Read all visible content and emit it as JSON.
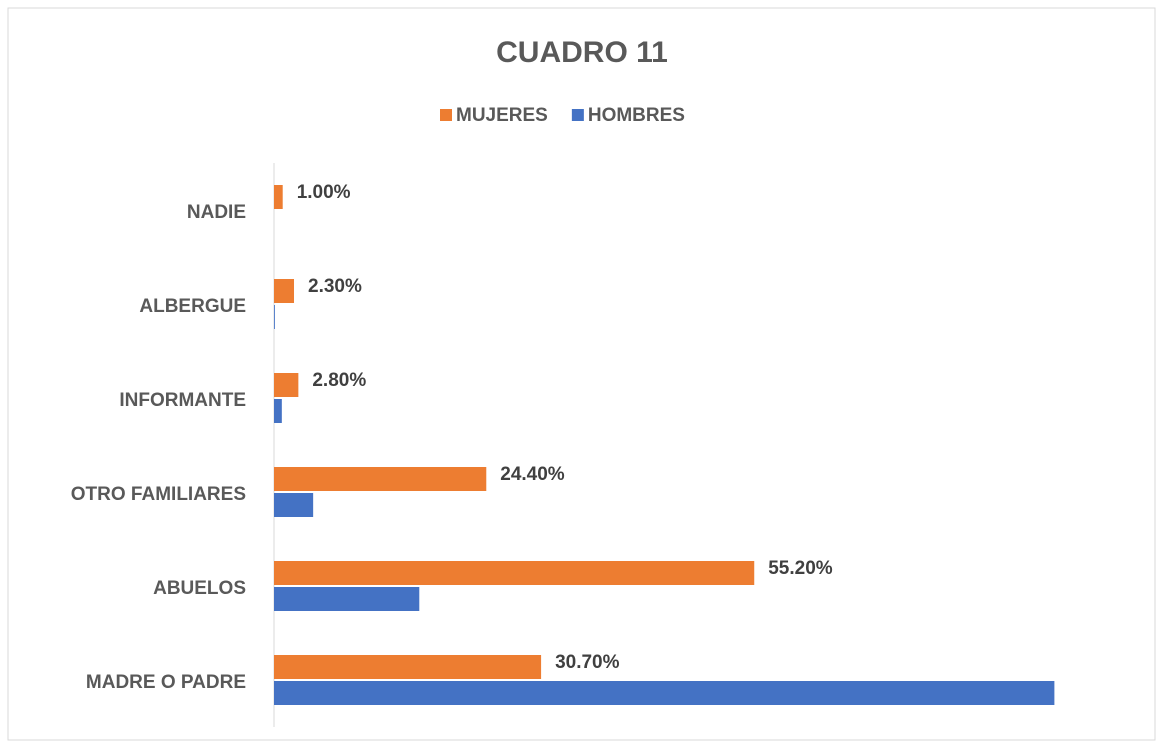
{
  "chart_data": {
    "type": "barh",
    "title": "CUADRO 11",
    "categories": [
      "NADIE",
      "ALBERGUE",
      "INFORMANTE",
      "OTRO FAMILIARES",
      "ABUELOS",
      "MADRE O PADRE"
    ],
    "series": [
      {
        "name": "MUJERES",
        "color": "#ed7d31",
        "values": [
          1.0,
          2.3,
          2.8,
          24.4,
          55.2,
          30.7
        ],
        "value_labels": [
          "1.00%",
          "2.30%",
          "2.80%",
          "24.40%",
          "55.20%",
          "30.70%"
        ]
      },
      {
        "name": "HOMBRES",
        "color": "#4472c4",
        "values": [
          0,
          0.1,
          0.9,
          4.5,
          16.7,
          89.7
        ]
      }
    ],
    "xlim": [
      0,
      100
    ],
    "legend": "top"
  }
}
